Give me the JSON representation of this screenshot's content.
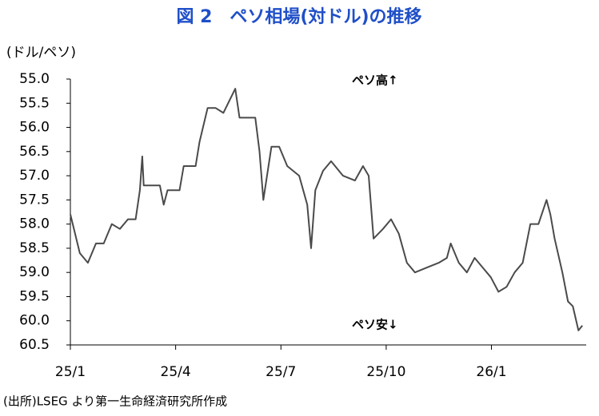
{
  "chart_data": {
    "type": "line",
    "title": "図 2　ペソ相場(対ドル)の推移",
    "y_axis_label": "(ドル/ペソ)",
    "annotations": [
      "ペソ高↑",
      "ペソ安↓"
    ],
    "source": "(出所)LSEG より第一生命経済研究所作成",
    "x": [
      0,
      0.27,
      0.5,
      0.73,
      0.95,
      1.18,
      1.41,
      1.64,
      1.86,
      1.98,
      2.05,
      2.09,
      2.32,
      2.55,
      2.66,
      2.77,
      3.11,
      3.23,
      3.57,
      3.68,
      3.91,
      4.14,
      4.36,
      4.7,
      4.82,
      5.05,
      5.27,
      5.39,
      5.5,
      5.73,
      5.95,
      6.18,
      6.52,
      6.75,
      6.86,
      6.98,
      7.2,
      7.43,
      7.77,
      8.11,
      8.34,
      8.5,
      8.64,
      8.91,
      9.14,
      9.36,
      9.59,
      9.82,
      10.16,
      10.5,
      10.73,
      10.84,
      11.07,
      11.3,
      11.52,
      11.75,
      11.98,
      12.2,
      12.43,
      12.66,
      12.89,
      13.11,
      13.34,
      13.57,
      13.68,
      13.8,
      14.02,
      14.18,
      14.32,
      14.48,
      14.59
    ],
    "series": [
      {
        "name": "ペソ相場",
        "color": "#4a4a4a",
        "values": [
          57.8,
          58.6,
          58.8,
          58.4,
          58.4,
          58.0,
          58.1,
          57.9,
          57.9,
          57.3,
          56.6,
          57.2,
          57.2,
          57.2,
          57.6,
          57.3,
          57.3,
          56.8,
          56.8,
          56.3,
          55.6,
          55.6,
          55.7,
          55.2,
          55.8,
          55.8,
          55.8,
          56.5,
          57.5,
          56.4,
          56.4,
          56.8,
          57.0,
          57.6,
          58.5,
          57.3,
          56.9,
          56.7,
          57.0,
          57.1,
          56.8,
          57.0,
          58.3,
          58.1,
          57.9,
          58.2,
          58.8,
          59.0,
          58.9,
          58.8,
          58.7,
          58.4,
          58.8,
          59.0,
          58.7,
          58.9,
          59.1,
          59.4,
          59.3,
          59.0,
          58.8,
          58.0,
          58.0,
          57.5,
          57.8,
          58.3,
          59.0,
          59.6,
          59.7,
          60.2,
          60.1
        ]
      }
    ],
    "xlim": [
      0,
      14.7
    ],
    "xticks": [
      {
        "value": 0,
        "label": "25/1"
      },
      {
        "value": 3,
        "label": "25/4"
      },
      {
        "value": 6,
        "label": "25/7"
      },
      {
        "value": 9,
        "label": "25/10"
      },
      {
        "value": 12,
        "label": "26/1"
      }
    ],
    "ylim": [
      55,
      60.5
    ],
    "y_inverted": true,
    "yticks": [
      {
        "value": 55,
        "label": "55.0"
      },
      55.5,
      {
        "value": 56,
        "label": "56.0"
      },
      56.5,
      {
        "value": 57,
        "label": "57.0"
      },
      57.5,
      {
        "value": 58,
        "label": "58.0"
      },
      58.5,
      {
        "value": 59,
        "label": "59.0"
      },
      59.5,
      {
        "value": 60,
        "label": "60.0"
      },
      60.5
    ],
    "grid": false
  }
}
